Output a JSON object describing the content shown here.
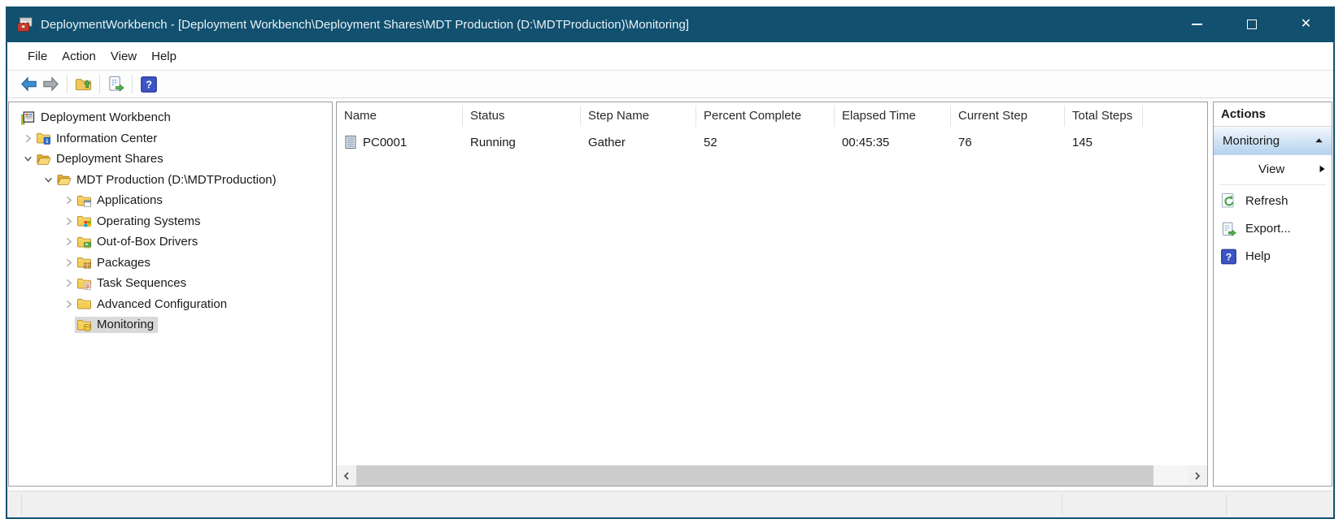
{
  "window": {
    "title": "DeploymentWorkbench - [Deployment Workbench\\Deployment Shares\\MDT Production (D:\\MDTProduction)\\Monitoring]"
  },
  "menu": {
    "items": [
      "File",
      "Action",
      "View",
      "Help"
    ]
  },
  "toolbar": {
    "buttons": [
      "back",
      "forward",
      "up-one-level",
      "export-list",
      "help"
    ]
  },
  "tree": {
    "items": [
      {
        "label": "Deployment Workbench",
        "depth": 0,
        "chevron": "none",
        "icon": "workbench",
        "selected": false
      },
      {
        "label": "Information Center",
        "depth": 1,
        "chevron": "collapsed",
        "icon": "folder-info",
        "selected": false
      },
      {
        "label": "Deployment Shares",
        "depth": 1,
        "chevron": "expanded",
        "icon": "folder-open",
        "selected": false
      },
      {
        "label": "MDT Production (D:\\MDTProduction)",
        "depth": 2,
        "chevron": "expanded",
        "icon": "folder-open",
        "selected": false
      },
      {
        "label": "Applications",
        "depth": 3,
        "chevron": "collapsed",
        "icon": "folder-app",
        "selected": false
      },
      {
        "label": "Operating Systems",
        "depth": 3,
        "chevron": "collapsed",
        "icon": "folder-os",
        "selected": false
      },
      {
        "label": "Out-of-Box Drivers",
        "depth": 3,
        "chevron": "collapsed",
        "icon": "folder-driver",
        "selected": false
      },
      {
        "label": "Packages",
        "depth": 3,
        "chevron": "collapsed",
        "icon": "folder-package",
        "selected": false
      },
      {
        "label": "Task Sequences",
        "depth": 3,
        "chevron": "collapsed",
        "icon": "folder-task",
        "selected": false
      },
      {
        "label": "Advanced Configuration",
        "depth": 3,
        "chevron": "collapsed",
        "icon": "folder-plain",
        "selected": false
      },
      {
        "label": "Monitoring",
        "depth": 3,
        "chevron": "none",
        "icon": "folder-monitor",
        "selected": true
      }
    ]
  },
  "list": {
    "columns": [
      "Name",
      "Status",
      "Step Name",
      "Percent Complete",
      "Elapsed Time",
      "Current Step",
      "Total Steps"
    ],
    "rows": [
      {
        "icon": "computer",
        "cells": [
          "PC0001",
          "Running",
          "Gather",
          "52",
          "00:45:35",
          "76",
          "145"
        ]
      }
    ]
  },
  "actions": {
    "title": "Actions",
    "group_label": "Monitoring",
    "items": [
      {
        "label": "View",
        "icon": null,
        "submenu": true
      },
      {
        "label": "Refresh",
        "icon": "refresh",
        "submenu": false
      },
      {
        "label": "Export...",
        "icon": "export",
        "submenu": false
      },
      {
        "label": "Help",
        "icon": "help",
        "submenu": false
      }
    ]
  },
  "colors": {
    "titlebar": "#11506F",
    "tree_selection": "#D9D9D9",
    "actions_gradient_top": "#F3F8FD",
    "actions_gradient_bottom": "#B4D2EF",
    "folder": "#F5CE56",
    "status_bar": "#F0F0F0"
  }
}
